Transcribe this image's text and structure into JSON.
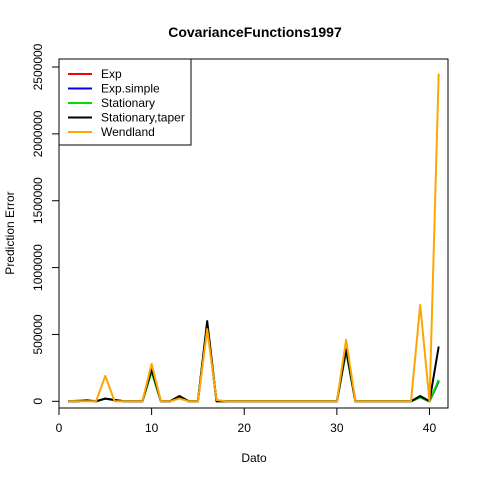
{
  "chart_data": {
    "type": "line",
    "title": "CovarianceFunctions1997",
    "xlabel": "Dato",
    "ylabel": "Prediction Error",
    "xlim": [
      0,
      42
    ],
    "ylim": [
      -50000,
      2560000
    ],
    "x_ticks": [
      0,
      10,
      20,
      30,
      40
    ],
    "x_tick_labels": [
      "0",
      "10",
      "20",
      "30",
      "40"
    ],
    "y_ticks": [
      0,
      500000,
      1000000,
      1500000,
      2000000,
      2500000
    ],
    "y_tick_labels": [
      "0",
      "500000",
      "1000000",
      "1500000",
      "2000000",
      "2500000"
    ],
    "grid": false,
    "legend_position": "top-left",
    "x": [
      1,
      2,
      3,
      4,
      5,
      6,
      7,
      8,
      9,
      10,
      11,
      12,
      13,
      14,
      15,
      16,
      17,
      18,
      19,
      20,
      21,
      22,
      23,
      24,
      25,
      26,
      27,
      28,
      29,
      30,
      31,
      32,
      33,
      34,
      35,
      36,
      37,
      38,
      39,
      40,
      41
    ],
    "series": [
      {
        "name": "Exp",
        "color": "#ff0000",
        "values": [
          0,
          0,
          5000,
          0,
          20000,
          10000,
          0,
          0,
          0,
          230000,
          0,
          0,
          30000,
          0,
          0,
          580000,
          0,
          0,
          0,
          0,
          0,
          0,
          0,
          0,
          0,
          0,
          0,
          0,
          0,
          0,
          380000,
          0,
          0,
          0,
          0,
          0,
          0,
          0,
          30000,
          0,
          150000
        ]
      },
      {
        "name": "Exp.simple",
        "color": "#0000ff",
        "values": [
          0,
          0,
          5000,
          0,
          20000,
          10000,
          0,
          0,
          0,
          230000,
          0,
          0,
          30000,
          0,
          0,
          580000,
          0,
          0,
          0,
          0,
          0,
          0,
          0,
          0,
          0,
          0,
          0,
          0,
          0,
          0,
          380000,
          0,
          0,
          0,
          0,
          0,
          0,
          0,
          30000,
          0,
          150000
        ]
      },
      {
        "name": "Stationary",
        "color": "#00dd00",
        "values": [
          0,
          5000,
          10000,
          0,
          20000,
          10000,
          0,
          0,
          0,
          220000,
          0,
          0,
          30000,
          0,
          0,
          560000,
          0,
          0,
          0,
          0,
          0,
          0,
          0,
          0,
          0,
          0,
          0,
          0,
          0,
          0,
          370000,
          0,
          0,
          0,
          0,
          0,
          0,
          0,
          30000,
          0,
          160000
        ]
      },
      {
        "name": "Stationary,taper",
        "color": "#000000",
        "values": [
          0,
          0,
          5000,
          0,
          20000,
          10000,
          0,
          0,
          0,
          240000,
          0,
          0,
          40000,
          0,
          0,
          600000,
          0,
          0,
          0,
          0,
          0,
          0,
          0,
          0,
          0,
          0,
          0,
          0,
          0,
          0,
          390000,
          0,
          0,
          0,
          0,
          0,
          0,
          0,
          40000,
          0,
          410000
        ]
      },
      {
        "name": "Wendland",
        "color": "#ffa500",
        "values": [
          0,
          0,
          0,
          0,
          190000,
          0,
          0,
          0,
          0,
          280000,
          0,
          0,
          20000,
          0,
          0,
          540000,
          10000,
          0,
          0,
          0,
          0,
          0,
          0,
          0,
          0,
          0,
          0,
          0,
          0,
          0,
          460000,
          0,
          0,
          0,
          0,
          0,
          0,
          0,
          720000,
          0,
          2450000
        ]
      }
    ]
  }
}
